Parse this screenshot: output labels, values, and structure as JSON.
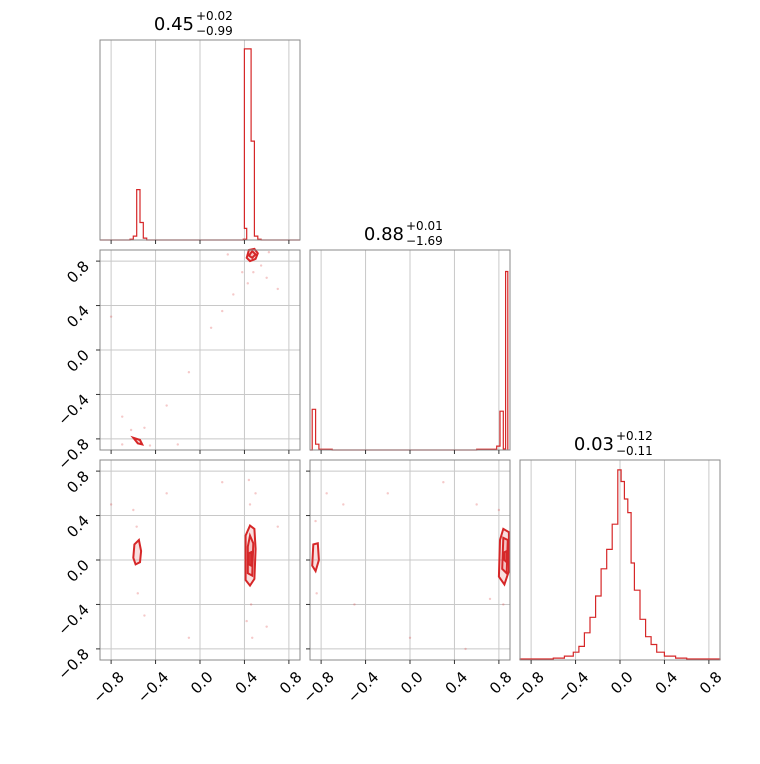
{
  "chart_data": {
    "type": "corner",
    "color": "#d62728",
    "grid": true,
    "ticks": {
      "x": [
        "−0.8",
        "−0.4",
        "0.0",
        "0.4",
        "0.8"
      ],
      "y": [
        "−0.8",
        "−0.4",
        "0.0",
        "0.4",
        "0.8"
      ],
      "values": [
        -0.8,
        -0.4,
        0.0,
        0.4,
        0.8
      ]
    },
    "parameters": [
      {
        "title_median": "0.45",
        "title_plus": "+0.02",
        "title_minus": "−0.99",
        "range": [
          -0.9,
          0.9
        ],
        "hist_step": [
          [
            -0.9,
            0
          ],
          [
            -0.63,
            0
          ],
          [
            -0.63,
            0.004
          ],
          [
            -0.6,
            0.004
          ],
          [
            -0.6,
            0.02
          ],
          [
            -0.57,
            0.02
          ],
          [
            -0.57,
            0.26
          ],
          [
            -0.54,
            0.26
          ],
          [
            -0.54,
            0.09
          ],
          [
            -0.51,
            0.09
          ],
          [
            -0.51,
            0.01
          ],
          [
            -0.48,
            0.01
          ],
          [
            -0.48,
            0
          ],
          [
            0.39,
            0
          ],
          [
            0.39,
            0.004
          ],
          [
            0.42,
            0.004
          ],
          [
            0.42,
            0.06
          ],
          [
            0.4,
            0.06
          ],
          [
            0.4,
            0.985
          ],
          [
            0.46,
            0.985
          ],
          [
            0.46,
            0.51
          ],
          [
            0.49,
            0.51
          ],
          [
            0.49,
            0.02
          ],
          [
            0.52,
            0.02
          ],
          [
            0.52,
            0.004
          ],
          [
            0.55,
            0.004
          ],
          [
            0.55,
            0
          ],
          [
            0.9,
            0
          ]
        ]
      },
      {
        "title_median": "0.88",
        "title_plus": "+0.01",
        "title_minus": "−1.69",
        "range": [
          -0.9,
          0.9
        ],
        "hist_step": [
          [
            -0.9,
            0
          ],
          [
            -0.88,
            0
          ],
          [
            -0.88,
            0.21
          ],
          [
            -0.85,
            0.21
          ],
          [
            -0.85,
            0.03
          ],
          [
            -0.82,
            0.03
          ],
          [
            -0.82,
            0.004
          ],
          [
            -0.7,
            0.004
          ],
          [
            -0.7,
            0
          ],
          [
            0.6,
            0
          ],
          [
            0.6,
            0.004
          ],
          [
            0.78,
            0.004
          ],
          [
            0.78,
            0.02
          ],
          [
            0.81,
            0.02
          ],
          [
            0.81,
            0.2
          ],
          [
            0.84,
            0.2
          ],
          [
            0.84,
            0.005
          ],
          [
            0.86,
            0.005
          ],
          [
            0.86,
            0.92
          ],
          [
            0.88,
            0.92
          ],
          [
            0.88,
            0
          ]
        ]
      },
      {
        "title_median": "0.03",
        "title_plus": "+0.12",
        "title_minus": "−0.11",
        "range": [
          -0.9,
          0.9
        ],
        "hist_step": [
          [
            -0.9,
            0
          ],
          [
            -0.9,
            0.005
          ],
          [
            -0.6,
            0.005
          ],
          [
            -0.6,
            0.01
          ],
          [
            -0.5,
            0.01
          ],
          [
            -0.5,
            0.02
          ],
          [
            -0.42,
            0.02
          ],
          [
            -0.42,
            0.04
          ],
          [
            -0.37,
            0.04
          ],
          [
            -0.37,
            0.07
          ],
          [
            -0.32,
            0.07
          ],
          [
            -0.32,
            0.14
          ],
          [
            -0.27,
            0.14
          ],
          [
            -0.27,
            0.22
          ],
          [
            -0.22,
            0.22
          ],
          [
            -0.22,
            0.33
          ],
          [
            -0.17,
            0.33
          ],
          [
            -0.17,
            0.47
          ],
          [
            -0.12,
            0.47
          ],
          [
            -0.12,
            0.57
          ],
          [
            -0.07,
            0.57
          ],
          [
            -0.07,
            0.7
          ],
          [
            -0.02,
            0.7
          ],
          [
            -0.02,
            0.98
          ],
          [
            0.01,
            0.98
          ],
          [
            0.01,
            0.92
          ],
          [
            0.04,
            0.92
          ],
          [
            0.04,
            0.83
          ],
          [
            0.07,
            0.83
          ],
          [
            0.07,
            0.76
          ],
          [
            0.1,
            0.76
          ],
          [
            0.1,
            0.5
          ],
          [
            0.13,
            0.5
          ],
          [
            0.13,
            0.36
          ],
          [
            0.18,
            0.36
          ],
          [
            0.18,
            0.21
          ],
          [
            0.23,
            0.21
          ],
          [
            0.23,
            0.12
          ],
          [
            0.28,
            0.12
          ],
          [
            0.28,
            0.08
          ],
          [
            0.33,
            0.08
          ],
          [
            0.33,
            0.04
          ],
          [
            0.4,
            0.04
          ],
          [
            0.4,
            0.02
          ],
          [
            0.5,
            0.02
          ],
          [
            0.5,
            0.01
          ],
          [
            0.6,
            0.01
          ],
          [
            0.6,
            0.005
          ],
          [
            0.9,
            0.005
          ],
          [
            0.9,
            0
          ]
        ]
      }
    ],
    "pairs": [
      {
        "x_param": 0,
        "y_param": 1,
        "contours": [
          [
            [
              0.42,
              0.83
            ],
            [
              0.45,
              0.8
            ],
            [
              0.5,
              0.82
            ],
            [
              0.52,
              0.87
            ],
            [
              0.49,
              0.91
            ],
            [
              0.44,
              0.9
            ]
          ],
          [
            [
              0.44,
              0.85
            ],
            [
              0.47,
              0.83
            ],
            [
              0.5,
              0.86
            ],
            [
              0.47,
              0.89
            ]
          ],
          [
            [
              -0.6,
              -0.79
            ],
            [
              -0.56,
              -0.84
            ],
            [
              -0.52,
              -0.85
            ],
            [
              -0.54,
              -0.81
            ]
          ]
        ],
        "points": [
          [
            0.38,
            0.7
          ],
          [
            0.55,
            0.76
          ],
          [
            0.6,
            0.65
          ],
          [
            0.3,
            0.5
          ],
          [
            0.2,
            0.35
          ],
          [
            -0.7,
            -0.6
          ],
          [
            -0.5,
            -0.7
          ],
          [
            -0.3,
            -0.5
          ],
          [
            -0.1,
            -0.2
          ],
          [
            0.1,
            0.2
          ],
          [
            0.48,
            0.7
          ],
          [
            0.43,
            0.6
          ],
          [
            -0.62,
            -0.72
          ],
          [
            -0.45,
            -0.86
          ],
          [
            -0.8,
            0.3
          ],
          [
            0.7,
            0.55
          ],
          [
            -0.2,
            -0.85
          ],
          [
            0.62,
            0.88
          ],
          [
            -0.7,
            -0.85
          ],
          [
            0.25,
            0.86
          ]
        ]
      },
      {
        "x_param": 0,
        "y_param": 2,
        "contours": [
          [
            [
              -0.6,
              0.02
            ],
            [
              -0.58,
              -0.04
            ],
            [
              -0.54,
              -0.02
            ],
            [
              -0.53,
              0.08
            ],
            [
              -0.55,
              0.18
            ],
            [
              -0.59,
              0.14
            ]
          ],
          [
            [
              0.41,
              -0.18
            ],
            [
              0.45,
              -0.23
            ],
            [
              0.49,
              -0.17
            ],
            [
              0.5,
              0.1
            ],
            [
              0.49,
              0.28
            ],
            [
              0.45,
              0.31
            ],
            [
              0.41,
              0.22
            ]
          ],
          [
            [
              0.43,
              -0.12
            ],
            [
              0.47,
              -0.14
            ],
            [
              0.48,
              0.15
            ],
            [
              0.45,
              0.22
            ],
            [
              0.43,
              0.12
            ]
          ],
          [
            [
              0.44,
              -0.04
            ],
            [
              0.46,
              -0.05
            ],
            [
              0.46,
              0.07
            ],
            [
              0.44,
              0.06
            ]
          ]
        ],
        "points": [
          [
            -0.57,
            0.3
          ],
          [
            -0.56,
            -0.3
          ],
          [
            -0.6,
            0.45
          ],
          [
            0.45,
            0.5
          ],
          [
            0.46,
            -0.4
          ],
          [
            0.5,
            0.6
          ],
          [
            0.42,
            -0.55
          ],
          [
            -0.8,
            0.5
          ],
          [
            -0.3,
            0.6
          ],
          [
            0.2,
            0.7
          ],
          [
            0.7,
            0.3
          ],
          [
            0.6,
            -0.6
          ],
          [
            -0.1,
            -0.7
          ],
          [
            -0.5,
            -0.5
          ],
          [
            0.47,
            -0.7
          ],
          [
            0.44,
            0.72
          ]
        ]
      },
      {
        "x_param": 1,
        "y_param": 2,
        "contours": [
          [
            [
              -0.88,
              -0.05
            ],
            [
              -0.85,
              -0.1
            ],
            [
              -0.82,
              0.0
            ],
            [
              -0.83,
              0.15
            ],
            [
              -0.87,
              0.14
            ]
          ],
          [
            [
              0.8,
              -0.15
            ],
            [
              0.85,
              -0.22
            ],
            [
              0.89,
              -0.1
            ],
            [
              0.89,
              0.25
            ],
            [
              0.84,
              0.28
            ],
            [
              0.81,
              0.18
            ]
          ],
          [
            [
              0.83,
              -0.08
            ],
            [
              0.87,
              -0.12
            ],
            [
              0.88,
              0.18
            ],
            [
              0.84,
              0.2
            ]
          ],
          [
            [
              0.85,
              0.0
            ],
            [
              0.87,
              -0.02
            ],
            [
              0.87,
              0.08
            ],
            [
              0.85,
              0.07
            ]
          ]
        ],
        "points": [
          [
            -0.85,
            0.35
          ],
          [
            -0.84,
            -0.3
          ],
          [
            0.8,
            0.45
          ],
          [
            0.84,
            -0.4
          ],
          [
            -0.6,
            0.5
          ],
          [
            -0.2,
            0.6
          ],
          [
            0.3,
            0.7
          ],
          [
            0.6,
            0.5
          ],
          [
            -0.5,
            -0.4
          ],
          [
            0.0,
            -0.7
          ],
          [
            0.5,
            -0.8
          ],
          [
            -0.75,
            0.6
          ],
          [
            0.72,
            -0.35
          ]
        ]
      }
    ]
  }
}
